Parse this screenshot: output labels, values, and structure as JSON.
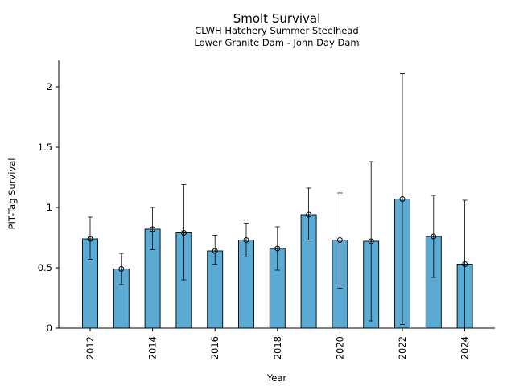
{
  "chart_data": {
    "type": "bar",
    "title": "Smolt Survival",
    "subtitle": [
      "CLWH Hatchery Summer Steelhead",
      "Lower Granite Dam - John Day Dam"
    ],
    "xlabel": "Year",
    "ylabel": "PIT-Tag Survival",
    "x": [
      2012,
      2013,
      2014,
      2015,
      2016,
      2017,
      2018,
      2019,
      2020,
      2021,
      2022,
      2023,
      2024
    ],
    "values": [
      0.74,
      0.49,
      0.82,
      0.79,
      0.64,
      0.73,
      0.66,
      0.94,
      0.73,
      0.72,
      1.07,
      0.76,
      0.53
    ],
    "err_low": [
      0.57,
      0.36,
      0.65,
      0.4,
      0.53,
      0.59,
      0.48,
      0.73,
      0.33,
      0.06,
      0.03,
      0.42,
      0.0
    ],
    "err_high": [
      0.92,
      0.62,
      1.0,
      1.19,
      0.77,
      0.87,
      0.84,
      1.16,
      1.12,
      1.38,
      2.11,
      1.1,
      1.06
    ],
    "xticks": [
      2012,
      2014,
      2016,
      2018,
      2020,
      2022,
      2024
    ],
    "yticks": [
      0,
      0.5,
      1,
      1.5,
      2
    ],
    "ytick_labels": [
      "0",
      "0.5",
      "1",
      "1.5",
      "2"
    ],
    "ylim": [
      0,
      2.2
    ],
    "bar_color": "#5aaad4",
    "grid": false,
    "legend": false
  }
}
